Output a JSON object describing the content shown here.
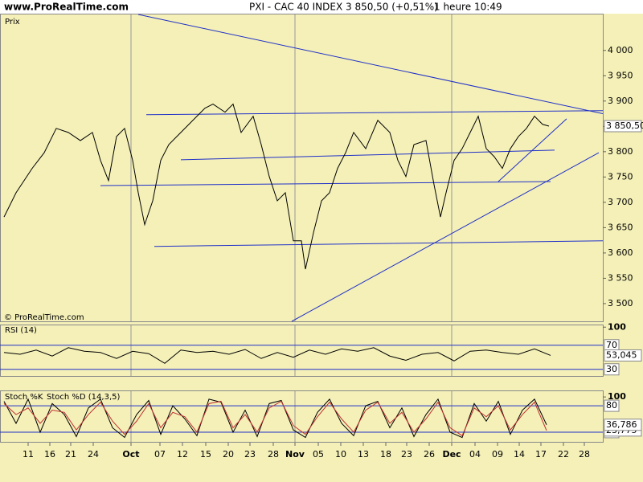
{
  "header": {
    "site": "www.ProRealTime.com",
    "instrument": "PXI - CAC 40 INDEX",
    "quote": "3 850,50 (+0,51%)",
    "period": "1 heure",
    "time": "10:49"
  },
  "chart_data": [
    {
      "type": "line",
      "label": "Prix",
      "credit": "© ProRealTime.com",
      "color": "#000000",
      "xlim": [
        0,
        750
      ],
      "xticks": [
        {
          "value": 35,
          "label": "11"
        },
        {
          "value": 62,
          "label": "16"
        },
        {
          "value": 88,
          "label": "21"
        },
        {
          "value": 116,
          "label": "24"
        },
        {
          "value": 163,
          "label": "Oct"
        },
        {
          "value": 199,
          "label": "07"
        },
        {
          "value": 227,
          "label": "12"
        },
        {
          "value": 256,
          "label": "15"
        },
        {
          "value": 284,
          "label": "20"
        },
        {
          "value": 311,
          "label": "23"
        },
        {
          "value": 340,
          "label": "28"
        },
        {
          "value": 367,
          "label": "Nov"
        },
        {
          "value": 396,
          "label": "05"
        },
        {
          "value": 424,
          "label": "10"
        },
        {
          "value": 452,
          "label": "13"
        },
        {
          "value": 480,
          "label": "18"
        },
        {
          "value": 506,
          "label": "23"
        },
        {
          "value": 534,
          "label": "26"
        },
        {
          "value": 562,
          "label": "Dec"
        },
        {
          "value": 591,
          "label": "04"
        },
        {
          "value": 619,
          "label": "09"
        },
        {
          "value": 646,
          "label": "14"
        },
        {
          "value": 673,
          "label": "17"
        },
        {
          "value": 701,
          "label": "22"
        },
        {
          "value": 727,
          "label": "28"
        }
      ],
      "ylim": [
        3465,
        4071
      ],
      "yticks": [
        {
          "value": 3500,
          "label": "3 500"
        },
        {
          "value": 3550,
          "label": "3 550"
        },
        {
          "value": 3600,
          "label": "3 600"
        },
        {
          "value": 3650,
          "label": "3 650"
        },
        {
          "value": 3700,
          "label": "3 700"
        },
        {
          "value": 3750,
          "label": "3 750"
        },
        {
          "value": 3800,
          "label": "3 800"
        },
        {
          "value": 3850,
          "label": "3 850"
        },
        {
          "value": 3900,
          "label": "3 900"
        },
        {
          "value": 3950,
          "label": "3 950"
        },
        {
          "value": 4000,
          "label": "4 000"
        }
      ],
      "x": [
        5,
        20,
        40,
        55,
        70,
        85,
        100,
        115,
        125,
        135,
        145,
        155,
        165,
        172,
        180,
        190,
        200,
        210,
        225,
        240,
        255,
        265,
        280,
        290,
        300,
        315,
        325,
        335,
        345,
        355,
        365,
        375,
        380,
        390,
        400,
        410,
        420,
        430,
        440,
        455,
        470,
        485,
        495,
        505,
        515,
        530,
        540,
        548,
        555,
        565,
        575,
        585,
        595,
        605,
        615,
        625,
        635,
        645,
        655,
        665,
        675,
        683
      ],
      "values": [
        3671,
        3719,
        3767,
        3798,
        3846,
        3838,
        3822,
        3838,
        3783,
        3743,
        3830,
        3846,
        3783,
        3719,
        3656,
        3703,
        3783,
        3814,
        3838,
        3862,
        3886,
        3894,
        3878,
        3894,
        3838,
        3870,
        3814,
        3751,
        3703,
        3719,
        3624,
        3624,
        3568,
        3640,
        3703,
        3719,
        3767,
        3798,
        3838,
        3806,
        3862,
        3838,
        3783,
        3751,
        3814,
        3822,
        3735,
        3671,
        3719,
        3783,
        3806,
        3838,
        3870,
        3806,
        3790,
        3767,
        3806,
        3830,
        3846,
        3870,
        3854,
        3850.5
      ],
      "last_values": [
        {
          "value": 3850.5,
          "label": "3 850,50"
        }
      ],
      "trendline_color": "#2030c8",
      "trendlines": [
        {
          "x": [
            172,
            750
          ],
          "y": [
            4071,
            3875
          ]
        },
        {
          "x": [
            182,
            750
          ],
          "y": [
            3873,
            3881
          ]
        },
        {
          "x": [
            225,
            690
          ],
          "y": [
            3784,
            3803
          ]
        },
        {
          "x": [
            125,
            685
          ],
          "y": [
            3733,
            3741
          ]
        },
        {
          "x": [
            192,
            750
          ],
          "y": [
            3613,
            3624
          ]
        },
        {
          "x": [
            363,
            745
          ],
          "y": [
            3465,
            3798
          ]
        },
        {
          "x": [
            620,
            705
          ],
          "y": [
            3741,
            3865
          ]
        }
      ]
    },
    {
      "type": "line",
      "label": "RSI (14)",
      "color": "#000000",
      "xlim": [
        0,
        750
      ],
      "ylim": [
        19,
        103
      ],
      "yticks": [
        100
      ],
      "levels": [
        70,
        30
      ],
      "x": [
        5,
        25,
        45,
        65,
        85,
        105,
        125,
        145,
        165,
        185,
        205,
        225,
        245,
        265,
        285,
        305,
        325,
        345,
        365,
        385,
        405,
        425,
        445,
        465,
        485,
        505,
        525,
        545,
        565,
        585,
        605,
        625,
        645,
        665,
        685
      ],
      "values": [
        58,
        55,
        62,
        52,
        66,
        60,
        58,
        48,
        60,
        56,
        40,
        62,
        58,
        60,
        55,
        63,
        48,
        58,
        50,
        62,
        55,
        64,
        60,
        66,
        52,
        45,
        55,
        58,
        44,
        60,
        62,
        58,
        55,
        64,
        53.045
      ],
      "last_values": [
        {
          "value": 53.045,
          "label": "53,045"
        }
      ]
    },
    {
      "type": "line",
      "label": "Stoch %K Stoch %D (14,3,5)",
      "xlim": [
        0,
        750
      ],
      "ylim": [
        -2,
        113
      ],
      "yticks": [
        100
      ],
      "levels": [
        80,
        20
      ],
      "x": [
        5,
        20,
        35,
        50,
        65,
        80,
        95,
        110,
        125,
        140,
        155,
        170,
        185,
        200,
        215,
        230,
        245,
        260,
        275,
        290,
        305,
        320,
        335,
        350,
        365,
        380,
        395,
        410,
        425,
        440,
        455,
        470,
        485,
        500,
        515,
        530,
        545,
        560,
        575,
        590,
        605,
        620,
        635,
        650,
        665,
        680
      ],
      "series": [
        {
          "name": "Stoch %K",
          "color": "#000000",
          "values": [
            90,
            40,
            95,
            20,
            85,
            60,
            10,
            75,
            95,
            30,
            8,
            60,
            92,
            15,
            80,
            50,
            12,
            95,
            88,
            20,
            70,
            10,
            85,
            92,
            25,
            8,
            65,
            95,
            40,
            12,
            80,
            90,
            30,
            75,
            10,
            60,
            95,
            20,
            8,
            85,
            45,
            90,
            15,
            70,
            95,
            36.786
          ]
        },
        {
          "name": "Stoch %D (14,3,5)",
          "color": "#c03030",
          "values": [
            85,
            60,
            75,
            40,
            70,
            65,
            25,
            60,
            88,
            45,
            15,
            45,
            85,
            30,
            65,
            55,
            20,
            85,
            90,
            30,
            60,
            20,
            75,
            90,
            35,
            15,
            55,
            88,
            50,
            20,
            70,
            88,
            40,
            65,
            20,
            50,
            88,
            30,
            12,
            75,
            55,
            80,
            25,
            60,
            88,
            23.775
          ]
        }
      ],
      "last_values": [
        {
          "value": 36.786,
          "label": "36,786"
        },
        {
          "value": 23.775,
          "label": "23,775"
        }
      ]
    }
  ]
}
